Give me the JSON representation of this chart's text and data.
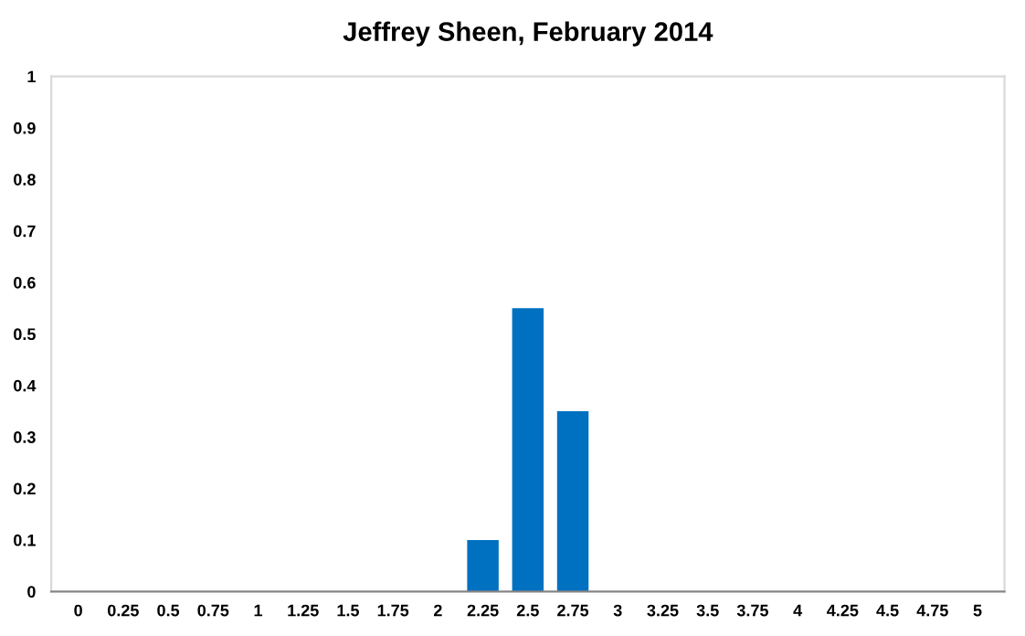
{
  "chart_data": {
    "type": "bar",
    "title": "Jeffrey Sheen, February 2014",
    "categories": [
      "0",
      "0.25",
      "0.5",
      "0.75",
      "1",
      "1.25",
      "1.5",
      "1.75",
      "2",
      "2.25",
      "2.5",
      "2.75",
      "3",
      "3.25",
      "3.5",
      "3.75",
      "4",
      "4.25",
      "4.5",
      "4.75",
      "5"
    ],
    "values": [
      0,
      0,
      0,
      0,
      0,
      0,
      0,
      0,
      0,
      0.1,
      0.55,
      0.35,
      0,
      0,
      0,
      0,
      0,
      0,
      0,
      0,
      0
    ],
    "color": "#0070c0",
    "ylim": [
      0,
      1
    ],
    "yticks": [
      0,
      0.1,
      0.2,
      0.3,
      0.4,
      0.5,
      0.6,
      0.7,
      0.8,
      0.9,
      1
    ],
    "grid": false,
    "legend": false
  }
}
